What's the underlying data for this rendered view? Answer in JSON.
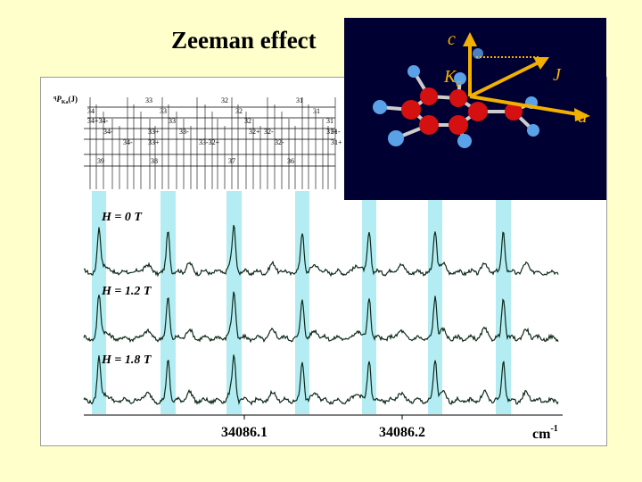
{
  "slide": {
    "title": "Zeeman effect"
  },
  "spectrum": {
    "assignment_header": "qPKa(J)",
    "assignment_header_main": "P",
    "assignment_header_sub": "Ka",
    "assignment_header_paren": "(J)",
    "assignment_rows": [
      [
        "33",
        "32",
        "31"
      ],
      [
        "34",
        "33",
        "32",
        "31"
      ],
      [
        "34+34-",
        "33",
        "32",
        "31"
      ],
      [
        "34-",
        "33+",
        "33-",
        "32+",
        "32-",
        "31+",
        "31-"
      ],
      [
        "34-",
        "33+",
        "33-32+",
        "32-",
        "31+"
      ],
      [
        "39",
        "38",
        "37",
        "36"
      ]
    ],
    "field_labels": [
      "H = 0 T",
      "H = 1.2 T",
      "H = 1.8 T"
    ],
    "x_ticks": [
      "34086.1",
      "34086.2"
    ],
    "x_unit": "cm-1",
    "x_unit_main": "cm",
    "x_unit_exp": "-1",
    "highlight_color": "#b3ecf2",
    "trace_color": "#0f2a1a"
  },
  "inset": {
    "background": "#000033",
    "axis_labels": {
      "c": "c",
      "kc": "K",
      "kc_sub": "c",
      "j": "J",
      "a": "a"
    },
    "vector_color": "#f2b100"
  }
}
